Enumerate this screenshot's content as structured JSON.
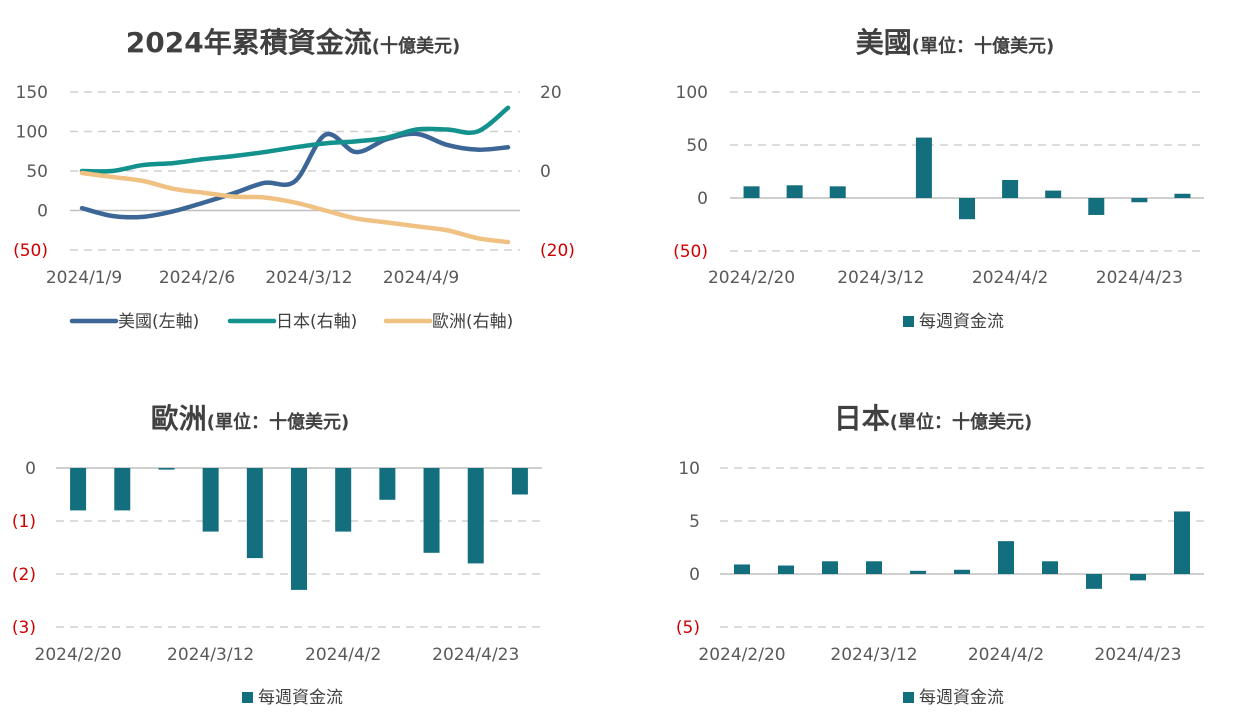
{
  "colors": {
    "us": "#3c6696",
    "japan": "#13918c",
    "europe": "#efc183",
    "bar": "#136e7e",
    "negative_tick": "#d00000"
  },
  "chart_data": [
    {
      "id": "cumulative",
      "type": "line",
      "title": "2024年累積資金流",
      "title_unit": "(十億美元)",
      "x_ticks": [
        "2024/1/9",
        "2024/2/6",
        "2024/3/12",
        "2024/4/9"
      ],
      "y_left": {
        "ticks": [
          150,
          100,
          50,
          0,
          -50
        ],
        "tick_labels": [
          "150",
          "100",
          "50",
          "0",
          "(50)"
        ],
        "lim": [
          -50,
          150
        ]
      },
      "y_right": {
        "ticks": [
          20,
          0,
          -20
        ],
        "tick_labels": [
          "20",
          "0",
          "(20)"
        ],
        "lim": [
          -20,
          20
        ]
      },
      "series": [
        {
          "name": "美國(左軸)",
          "axis": "left",
          "color_key": "us",
          "values": [
            3,
            -7,
            -8,
            -1,
            10,
            22,
            35,
            37,
            96,
            74,
            90,
            97,
            83,
            77,
            80
          ]
        },
        {
          "name": "日本(右軸)",
          "axis": "right",
          "color_key": "japan",
          "values": [
            0,
            0,
            1.5,
            2,
            3,
            3.8,
            4.8,
            6,
            7,
            7.5,
            8.4,
            10.5,
            10.5,
            10,
            16
          ]
        },
        {
          "name": "歐洲(右軸)",
          "axis": "right",
          "color_key": "europe",
          "values": [
            -0.5,
            -1.5,
            -2.5,
            -4.5,
            -5.5,
            -6.5,
            -6.7,
            -8,
            -10,
            -12,
            -13,
            -14,
            -15,
            -17,
            -18
          ]
        }
      ],
      "grid": true,
      "legend": "bottom"
    },
    {
      "id": "us",
      "type": "bar",
      "title": "美國",
      "title_unit": "(單位：十億美元)",
      "x_ticks": [
        "2024/2/20",
        "2024/3/12",
        "2024/4/2",
        "2024/4/23"
      ],
      "tick_index": [
        0,
        3,
        6,
        9
      ],
      "y_ticks": [
        100,
        50,
        0,
        -50
      ],
      "y_tick_labels": [
        "100",
        "50",
        "0",
        "(50)"
      ],
      "ylim": [
        -50,
        100
      ],
      "values": [
        11,
        12,
        11,
        null,
        57,
        -20,
        17,
        7,
        -16,
        -4,
        4
      ],
      "series_name": "每週資金流",
      "grid": true,
      "legend": "bottom"
    },
    {
      "id": "europe",
      "type": "bar",
      "title": "歐洲",
      "title_unit": "(單位：十億美元)",
      "x_ticks": [
        "2024/2/20",
        "2024/3/12",
        "2024/4/2",
        "2024/4/23"
      ],
      "tick_index": [
        0,
        3,
        6,
        9
      ],
      "y_ticks": [
        0,
        -1,
        -2,
        -3
      ],
      "y_tick_labels": [
        "0",
        "(1)",
        "(2)",
        "(3)"
      ],
      "ylim": [
        -3,
        0
      ],
      "values": [
        -0.8,
        -0.8,
        -0.03,
        -1.2,
        -1.7,
        -2.3,
        -1.2,
        -0.6,
        -1.6,
        -1.8,
        -0.5
      ],
      "series_name": "每週資金流",
      "grid": true,
      "legend": "bottom"
    },
    {
      "id": "japan",
      "type": "bar",
      "title": "日本",
      "title_unit": "(單位：十億美元)",
      "x_ticks": [
        "2024/2/20",
        "2024/3/12",
        "2024/4/2",
        "2024/4/23"
      ],
      "tick_index": [
        0,
        3,
        6,
        9
      ],
      "y_ticks": [
        10,
        5,
        0,
        -5
      ],
      "y_tick_labels": [
        "10",
        "5",
        "0",
        "(5)"
      ],
      "ylim": [
        -5,
        10
      ],
      "values": [
        0.9,
        0.8,
        1.2,
        1.2,
        0.3,
        0.4,
        3.1,
        1.2,
        -1.4,
        -0.6,
        5.9
      ],
      "series_name": "每週資金流",
      "grid": true,
      "legend": "bottom"
    }
  ]
}
